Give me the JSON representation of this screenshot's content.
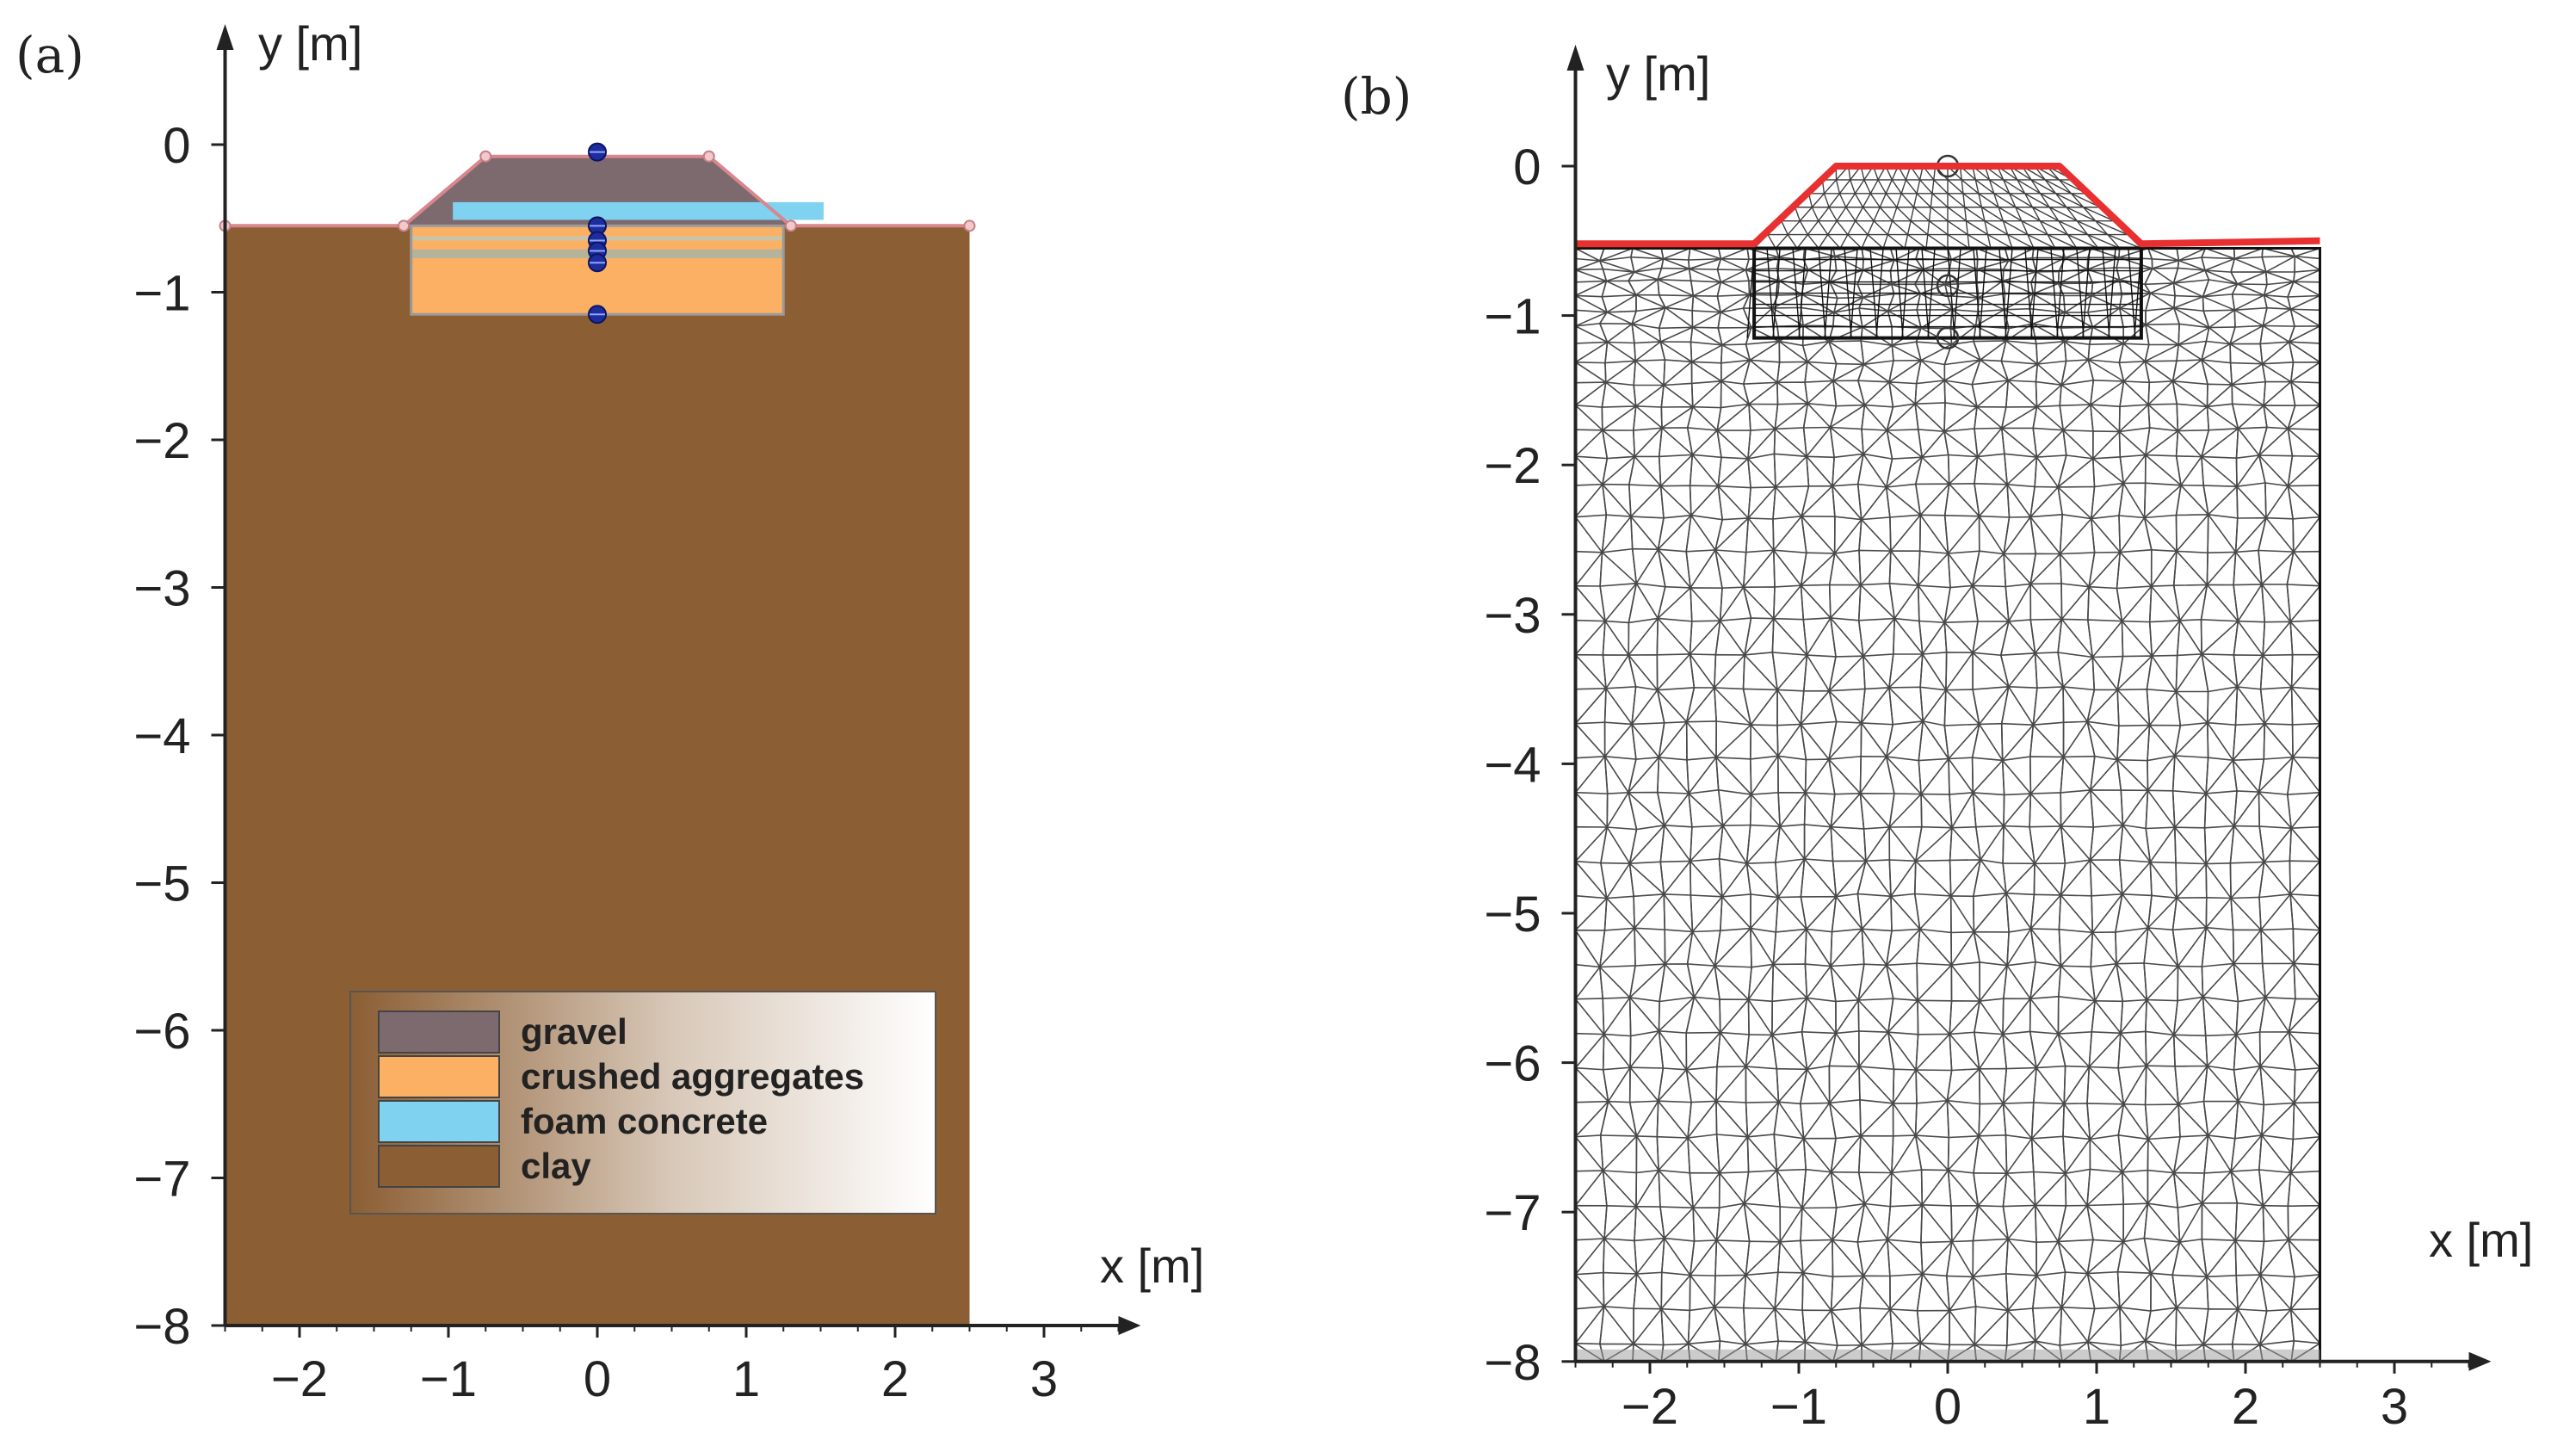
{
  "panels": [
    {
      "id": "a",
      "tag": "(a)",
      "x_axis_label": "x [m]",
      "y_axis_label": "y [m]",
      "x_ticks": [
        -2,
        -1,
        0,
        1,
        2,
        3
      ],
      "y_ticks": [
        0,
        -1,
        -2,
        -3,
        -4,
        -5,
        -6,
        -7,
        -8
      ],
      "x_tick_labels": [
        "−2",
        "−1",
        "0",
        "1",
        "2",
        "3"
      ],
      "y_tick_labels": [
        "0",
        "−1",
        "−2",
        "−3",
        "−4",
        "−5",
        "−6",
        "−7",
        "−8"
      ],
      "legend": [
        {
          "label": "gravel",
          "color": "#7d6a6e"
        },
        {
          "label": "crushed aggregates",
          "color": "#fbb063"
        },
        {
          "label": "foam concrete",
          "color": "#7fd2f0"
        },
        {
          "label": "clay",
          "color": "#8b5e34"
        }
      ]
    },
    {
      "id": "b",
      "tag": "(b)",
      "x_axis_label": "x [m]",
      "y_axis_label": "y [m]",
      "x_ticks": [
        -2,
        -1,
        0,
        1,
        2,
        3
      ],
      "y_ticks": [
        0,
        -1,
        -2,
        -3,
        -4,
        -5,
        -6,
        -7,
        -8
      ],
      "x_tick_labels": [
        "−2",
        "−1",
        "0",
        "1",
        "2",
        "3"
      ],
      "y_tick_labels": [
        "0",
        "−1",
        "−2",
        "−3",
        "−4",
        "−5",
        "−6",
        "−7",
        "−8"
      ]
    }
  ],
  "colors": {
    "clay": "#8b5e34",
    "gravel": "#7d6a6e",
    "crushed": "#fbb063",
    "foam": "#7fd2f0",
    "surface_line": "#e83030",
    "mesh": "#2a2a2a"
  }
}
